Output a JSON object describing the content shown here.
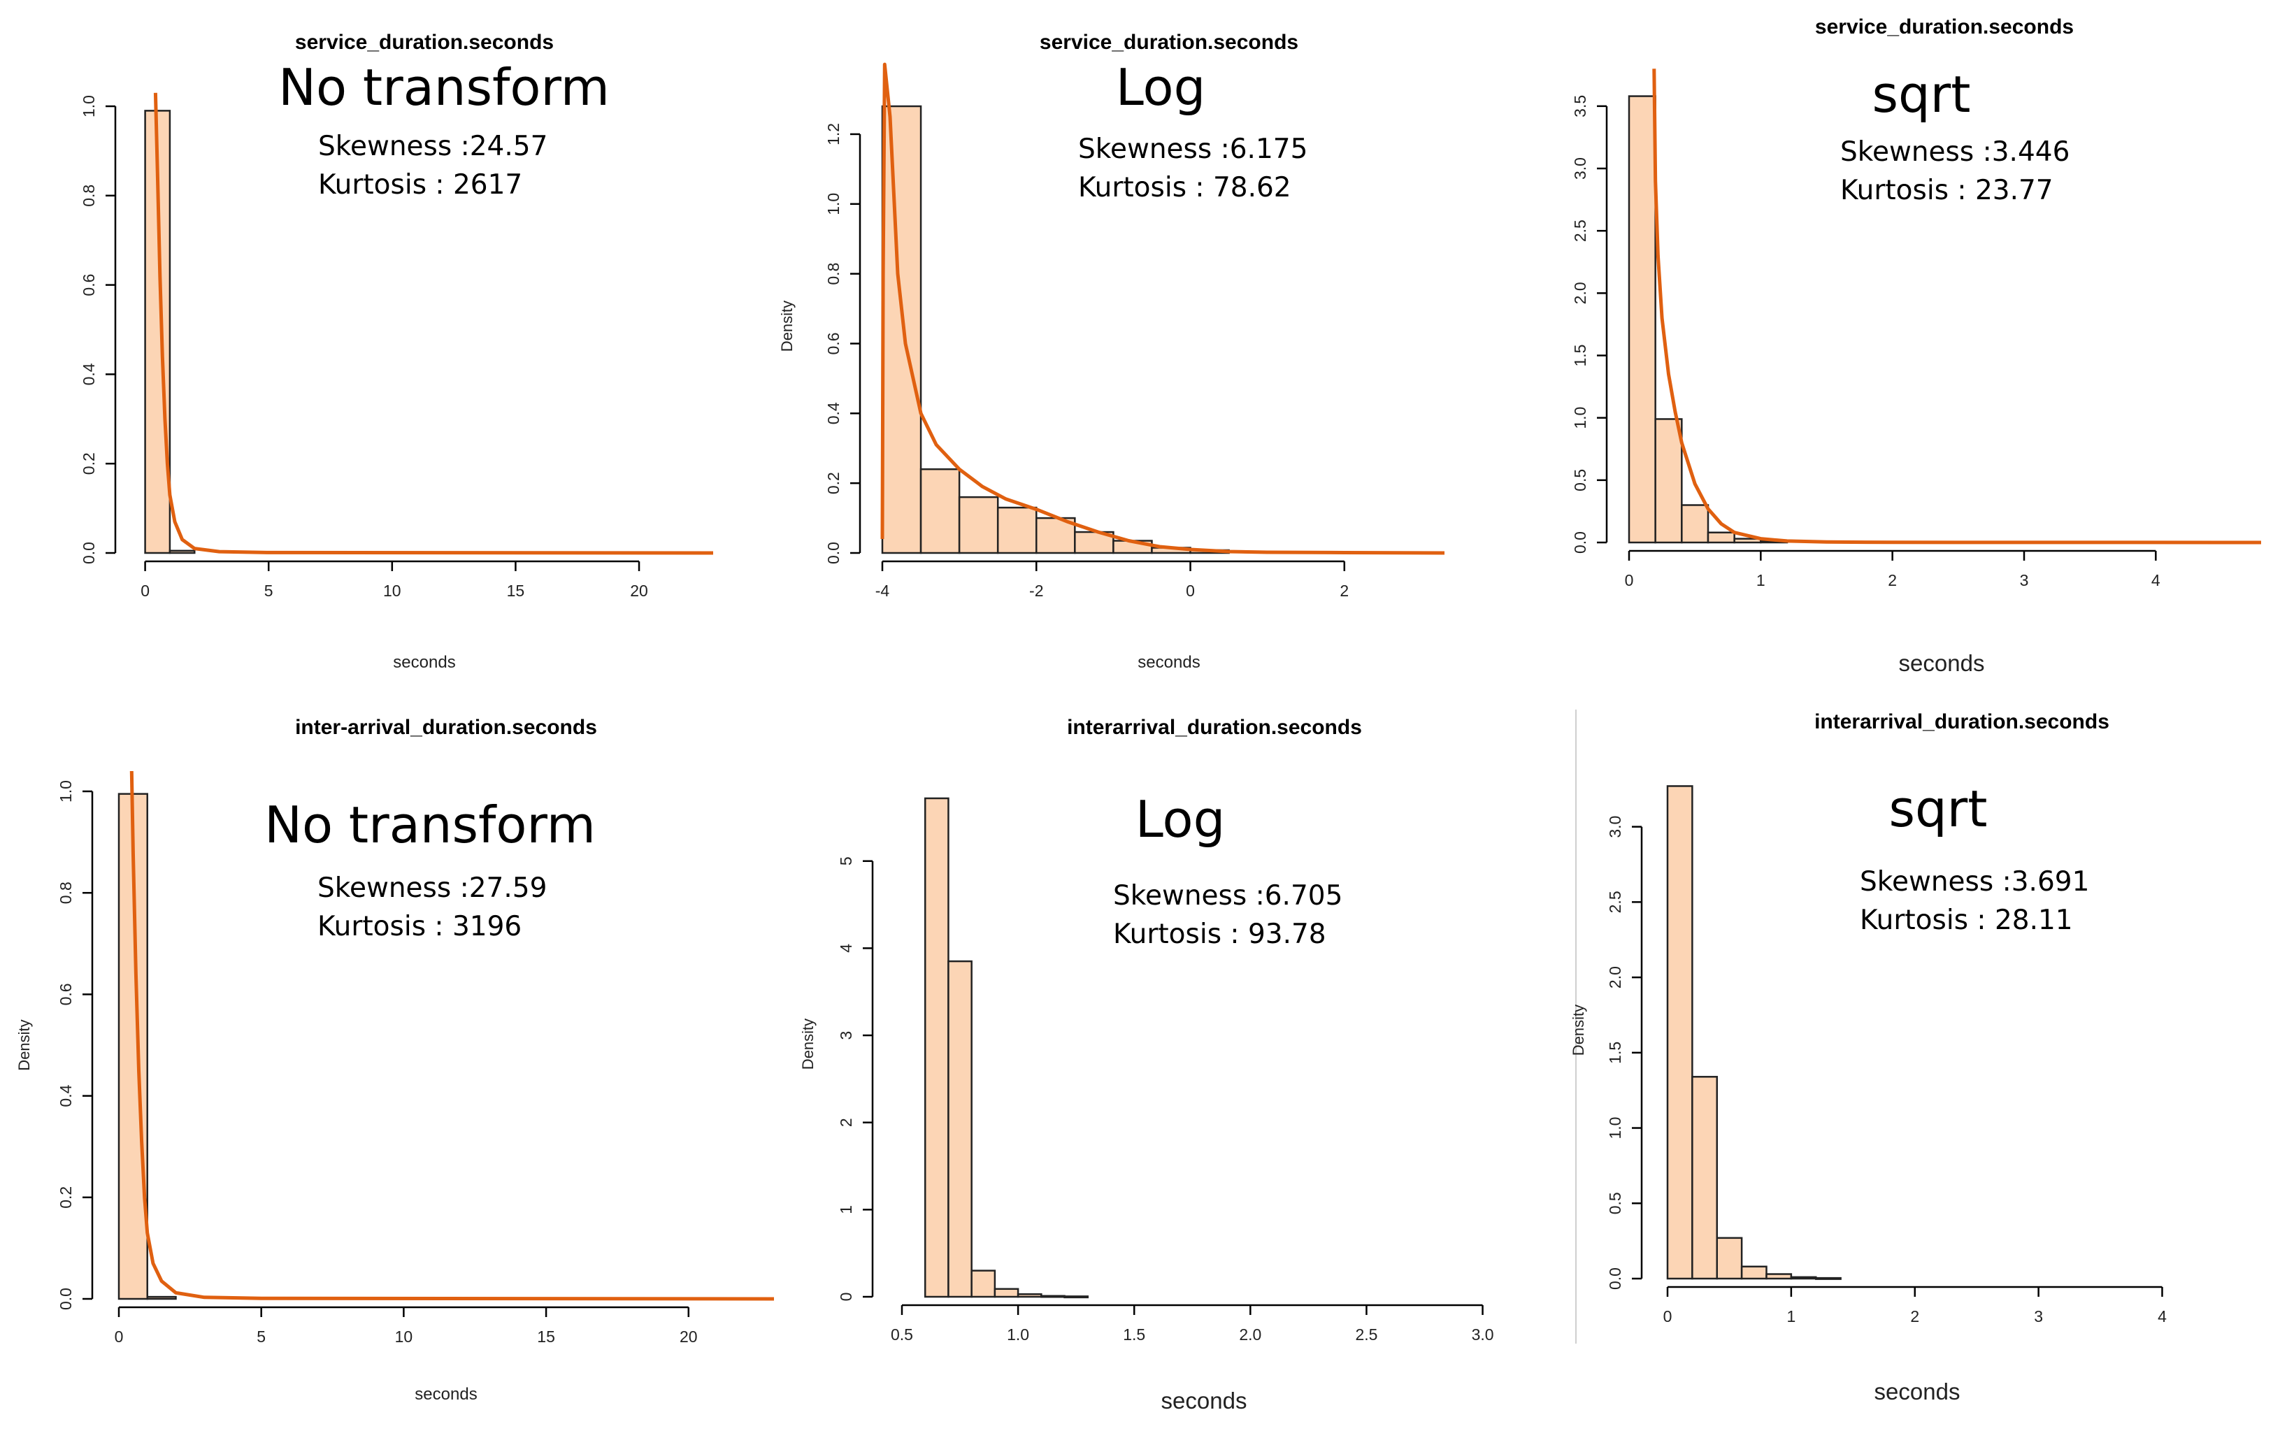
{
  "colors": {
    "bar_fill": "#fcd5b5",
    "bar_stroke": "#222222",
    "density_curve": "#e06010",
    "axis": "#000000"
  },
  "chart_data": [
    {
      "type": "bar",
      "title": "service_duration.seconds",
      "annotation": "No transform",
      "stats": [
        "Skewness :24.57",
        "Kurtosis : 2617"
      ],
      "xlabel": "seconds",
      "ylabel": "",
      "xticks": [
        "0",
        "5",
        "10",
        "15",
        "20"
      ],
      "yticks": [
        "0.0",
        "0.2",
        "0.4",
        "0.6",
        "0.8",
        "1.0"
      ],
      "xlim": [
        -0.3,
        23
      ],
      "ylim": [
        0,
        1.0
      ],
      "bins": [
        [
          0,
          1,
          0.99
        ],
        [
          1,
          2,
          0.005
        ]
      ],
      "density_curve": [
        [
          0.42,
          1.03
        ],
        [
          0.5,
          0.85
        ],
        [
          0.6,
          0.62
        ],
        [
          0.7,
          0.44
        ],
        [
          0.8,
          0.3
        ],
        [
          0.9,
          0.2
        ],
        [
          1.0,
          0.13
        ],
        [
          1.2,
          0.07
        ],
        [
          1.5,
          0.03
        ],
        [
          2.0,
          0.01
        ],
        [
          3.0,
          0.003
        ],
        [
          5.0,
          0.001
        ],
        [
          23,
          0.0
        ]
      ]
    },
    {
      "type": "bar",
      "title": "service_duration.seconds",
      "annotation": "Log",
      "stats": [
        "Skewness :6.175",
        "Kurtosis : 78.62"
      ],
      "xlabel": "seconds",
      "ylabel": "Density",
      "xticks": [
        "-4",
        "-2",
        "0",
        "2"
      ],
      "yticks": [
        "0.0",
        "0.2",
        "0.4",
        "0.6",
        "0.8",
        "1.0",
        "1.2"
      ],
      "xlim": [
        -4,
        3.5
      ],
      "ylim": [
        0,
        1.3
      ],
      "bins": [
        [
          -4,
          -3.5,
          1.28
        ],
        [
          -3.5,
          -3,
          0.24
        ],
        [
          -3,
          -2.5,
          0.16
        ],
        [
          -2.5,
          -2,
          0.13
        ],
        [
          -2,
          -1.5,
          0.1
        ],
        [
          -1.5,
          -1,
          0.06
        ],
        [
          -1,
          -0.5,
          0.035
        ],
        [
          -0.5,
          0,
          0.015
        ],
        [
          0,
          0.5,
          0.008
        ]
      ],
      "density_curve": [
        [
          -4.0,
          0.04
        ],
        [
          -3.99,
          0.8
        ],
        [
          -3.97,
          1.4
        ],
        [
          -3.9,
          1.25
        ],
        [
          -3.8,
          0.8
        ],
        [
          -3.7,
          0.6
        ],
        [
          -3.5,
          0.4
        ],
        [
          -3.3,
          0.31
        ],
        [
          -3.0,
          0.24
        ],
        [
          -2.7,
          0.19
        ],
        [
          -2.4,
          0.155
        ],
        [
          -2.0,
          0.125
        ],
        [
          -1.6,
          0.09
        ],
        [
          -1.2,
          0.06
        ],
        [
          -0.8,
          0.035
        ],
        [
          -0.4,
          0.018
        ],
        [
          0.0,
          0.01
        ],
        [
          0.5,
          0.004
        ],
        [
          1.0,
          0.002
        ],
        [
          2.0,
          0.001
        ],
        [
          3.3,
          0.0
        ]
      ]
    },
    {
      "type": "bar",
      "title": "service_duration.seconds",
      "annotation": "sqrt",
      "stats": [
        "Skewness :3.446",
        "Kurtosis : 23.77"
      ],
      "xlabel": "seconds",
      "ylabel": "",
      "xticks": [
        "0",
        "1",
        "2",
        "3",
        "4"
      ],
      "yticks": [
        "0.0",
        "0.5",
        "1.0",
        "1.5",
        "2.0",
        "2.5",
        "3.0",
        "3.5"
      ],
      "xlim": [
        0,
        4.8
      ],
      "ylim": [
        0,
        3.6
      ],
      "bins": [
        [
          0,
          0.2,
          3.58
        ],
        [
          0.2,
          0.4,
          0.99
        ],
        [
          0.4,
          0.6,
          0.3
        ],
        [
          0.6,
          0.8,
          0.08
        ],
        [
          0.8,
          1.0,
          0.03
        ],
        [
          1.0,
          1.2,
          0.01
        ]
      ],
      "density_curve": [
        [
          0.19,
          3.8
        ],
        [
          0.2,
          2.9
        ],
        [
          0.22,
          2.3
        ],
        [
          0.25,
          1.8
        ],
        [
          0.3,
          1.35
        ],
        [
          0.35,
          1.05
        ],
        [
          0.4,
          0.8
        ],
        [
          0.5,
          0.47
        ],
        [
          0.6,
          0.27
        ],
        [
          0.7,
          0.15
        ],
        [
          0.8,
          0.08
        ],
        [
          1.0,
          0.03
        ],
        [
          1.2,
          0.012
        ],
        [
          1.5,
          0.004
        ],
        [
          2.0,
          0.001
        ],
        [
          4.8,
          0.0
        ]
      ]
    },
    {
      "type": "bar",
      "title": "inter-arrival_duration.seconds",
      "annotation": "No transform",
      "stats": [
        "Skewness :27.59",
        "Kurtosis : 3196"
      ],
      "xlabel": "seconds",
      "ylabel": "Density",
      "xticks": [
        "0",
        "5",
        "10",
        "15",
        "20"
      ],
      "yticks": [
        "0.0",
        "0.2",
        "0.4",
        "0.6",
        "0.8",
        "1.0"
      ],
      "xlim": [
        0,
        23
      ],
      "ylim": [
        0,
        1.0
      ],
      "bins": [
        [
          0,
          1,
          0.995
        ],
        [
          1,
          2,
          0.004
        ]
      ],
      "density_curve": [
        [
          0.45,
          1.04
        ],
        [
          0.5,
          0.88
        ],
        [
          0.6,
          0.64
        ],
        [
          0.7,
          0.45
        ],
        [
          0.8,
          0.31
        ],
        [
          0.9,
          0.2
        ],
        [
          1.0,
          0.13
        ],
        [
          1.2,
          0.07
        ],
        [
          1.5,
          0.035
        ],
        [
          2.0,
          0.012
        ],
        [
          3.0,
          0.003
        ],
        [
          5.0,
          0.001
        ],
        [
          23,
          0.0
        ]
      ]
    },
    {
      "type": "bar",
      "title": "interarrival_duration.seconds",
      "annotation": "Log",
      "stats": [
        "Skewness :6.705",
        "Kurtosis : 93.78"
      ],
      "xlabel": "seconds",
      "ylabel": "Density",
      "xticks": [
        "0.5",
        "1.0",
        "1.5",
        "2.0",
        "2.5",
        "3.0"
      ],
      "yticks": [
        "0",
        "1",
        "2",
        "3",
        "4",
        "5"
      ],
      "xlim": [
        0.5,
        3.2
      ],
      "ylim": [
        0,
        5.8
      ],
      "bins": [
        [
          0.6,
          0.7,
          5.72
        ],
        [
          0.7,
          0.8,
          3.85
        ],
        [
          0.8,
          0.9,
          0.3
        ],
        [
          0.9,
          1.0,
          0.09
        ],
        [
          1.0,
          1.1,
          0.03
        ],
        [
          1.1,
          1.2,
          0.01
        ],
        [
          1.2,
          1.3,
          0.005
        ]
      ],
      "density_curve": []
    },
    {
      "type": "bar",
      "title": "interarrival_duration.seconds",
      "annotation": "sqrt",
      "stats": [
        "Skewness :3.691",
        "Kurtosis : 28.11"
      ],
      "xlabel": "seconds",
      "ylabel": "Density",
      "xticks": [
        "0",
        "1",
        "2",
        "3",
        "4"
      ],
      "yticks": [
        "0.0",
        "0.5",
        "1.0",
        "1.5",
        "2.0",
        "2.5",
        "3.0"
      ],
      "xlim": [
        0,
        4.8
      ],
      "ylim": [
        0,
        3.3
      ],
      "bins": [
        [
          0,
          0.2,
          3.27
        ],
        [
          0.2,
          0.4,
          1.34
        ],
        [
          0.4,
          0.6,
          0.27
        ],
        [
          0.6,
          0.8,
          0.08
        ],
        [
          0.8,
          1.0,
          0.03
        ],
        [
          1.0,
          1.2,
          0.01
        ],
        [
          1.2,
          1.4,
          0.004
        ]
      ],
      "density_curve": []
    }
  ]
}
